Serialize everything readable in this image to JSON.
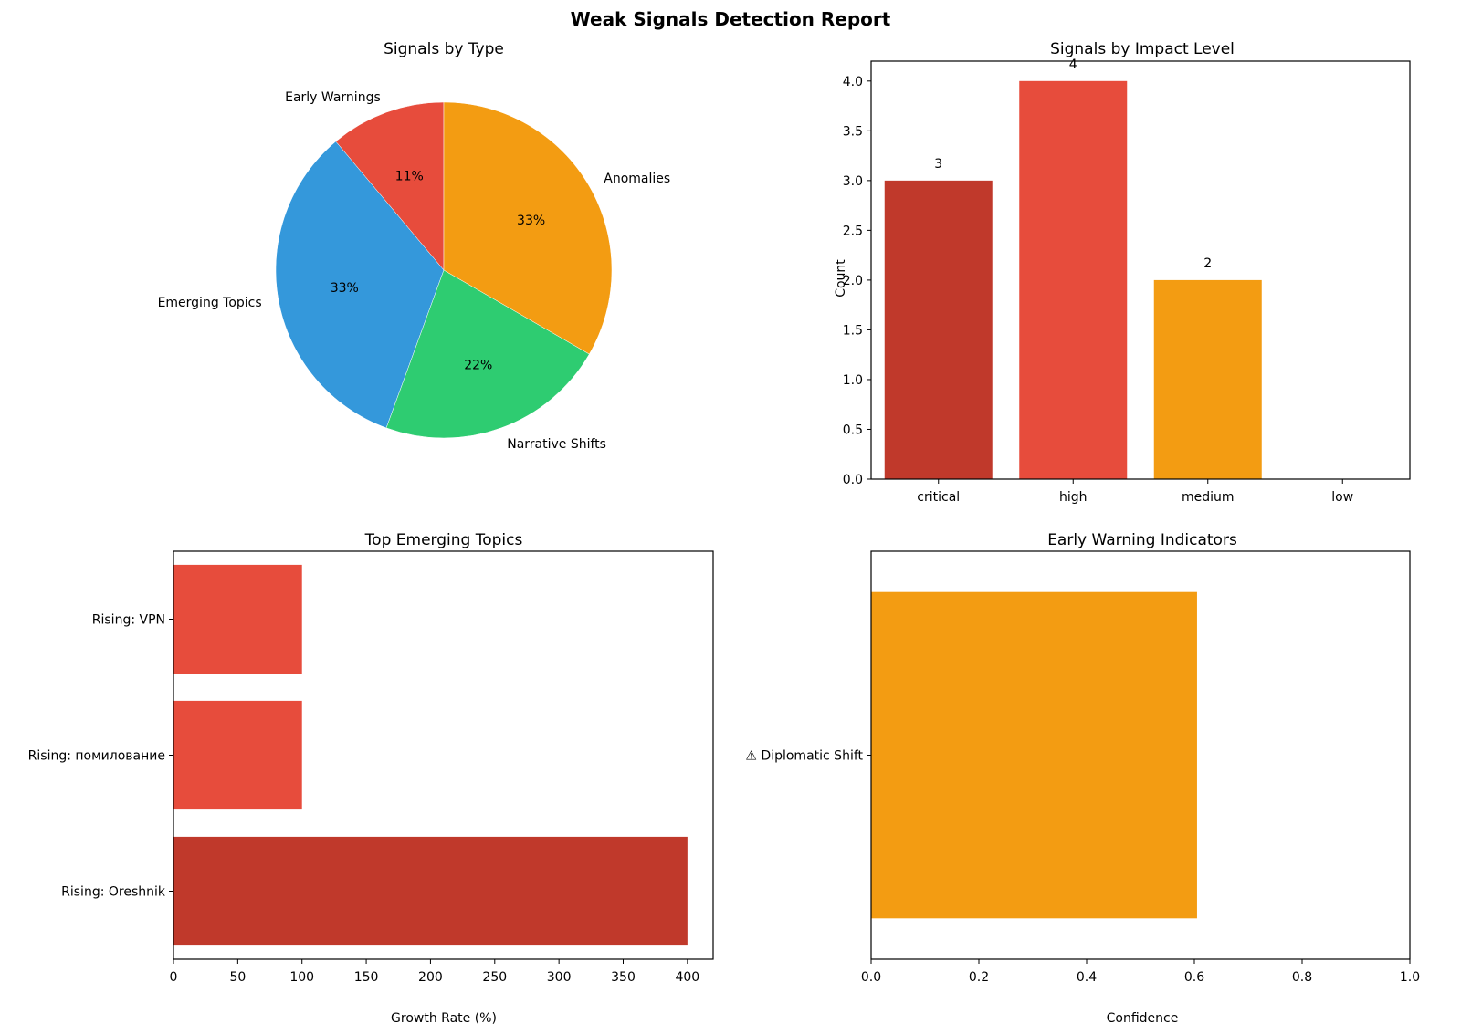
{
  "figure": {
    "title": "Weak Signals Detection Report"
  },
  "chart_data": [
    {
      "type": "pie",
      "title": "Signals by Type",
      "labels": [
        "Early Warnings",
        "Emerging Topics",
        "Narrative Shifts",
        "Anomalies"
      ],
      "values": [
        1,
        3,
        2,
        3
      ],
      "percent_labels": [
        "11%",
        "33%",
        "22%",
        "33%"
      ],
      "colors": [
        "#e74c3c",
        "#3498db",
        "#2ecc71",
        "#f39c12"
      ],
      "start_angle_deg": 90,
      "direction": "counterclockwise"
    },
    {
      "type": "bar",
      "title": "Signals by Impact Level",
      "categories": [
        "critical",
        "high",
        "medium",
        "low"
      ],
      "values": [
        3,
        4,
        2,
        0
      ],
      "data_labels": [
        "3",
        "4",
        "2",
        ""
      ],
      "colors": [
        "#c0392b",
        "#e74c3c",
        "#f39c12",
        "#95a5a6"
      ],
      "xlabel": "",
      "ylabel": "Count",
      "ylim": [
        0,
        4.2
      ],
      "yticks": [
        "0.0",
        "0.5",
        "1.0",
        "1.5",
        "2.0",
        "2.5",
        "3.0",
        "3.5",
        "4.0"
      ],
      "grid": false
    },
    {
      "type": "bar",
      "orientation": "horizontal",
      "title": "Top Emerging Topics",
      "categories": [
        "Rising: Oreshnik",
        "Rising: помилование",
        "Rising: VPN"
      ],
      "values": [
        400,
        100,
        100
      ],
      "colors": [
        "#c0392b",
        "#e74c3c",
        "#e74c3c"
      ],
      "xlabel": "Growth Rate (%)",
      "ylabel": "",
      "xlim": [
        0,
        420
      ],
      "xticks": [
        "0",
        "50",
        "100",
        "150",
        "200",
        "250",
        "300",
        "350",
        "400"
      ],
      "grid": false
    },
    {
      "type": "bar",
      "orientation": "horizontal",
      "title": "Early Warning Indicators",
      "categories": [
        "⚠ Diplomatic Shift"
      ],
      "values": [
        0.605
      ],
      "colors": [
        "#f39c12"
      ],
      "xlabel": "Confidence",
      "ylabel": "",
      "xlim": [
        0,
        1.0
      ],
      "xticks": [
        "0.0",
        "0.2",
        "0.4",
        "0.6",
        "0.8",
        "1.0"
      ],
      "grid": false
    }
  ]
}
